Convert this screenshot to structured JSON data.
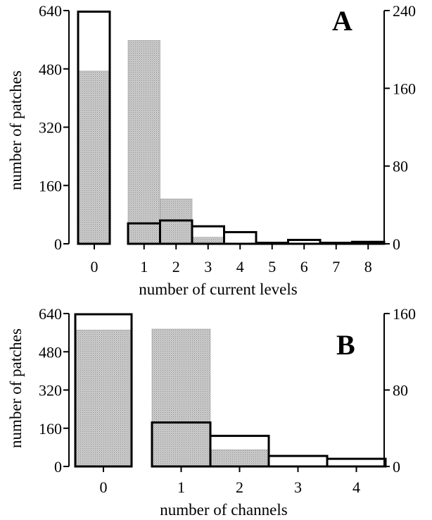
{
  "colors": {
    "gray_fill": "#c8c8c8",
    "open_fill": "#ffffff",
    "stroke": "#000000"
  },
  "chart_data": [
    {
      "panel": "A",
      "type": "bar",
      "ylabel": "number of patches",
      "xlabel": "number of current levels",
      "left_axis": {
        "range": [
          0,
          640
        ],
        "ticks": [
          "0",
          "160",
          "320",
          "480",
          "640"
        ]
      },
      "right_axis": {
        "range": [
          0,
          240
        ],
        "ticks": [
          "0",
          "80",
          "160",
          "240"
        ]
      },
      "categories": [
        "0",
        "1",
        "2",
        "3",
        "4",
        "5",
        "6",
        "7",
        "8"
      ],
      "series": [
        {
          "axis": "left",
          "style": "open",
          "values": [
            637,
            null,
            null,
            null,
            null,
            null,
            null,
            null,
            null
          ]
        },
        {
          "axis": "left",
          "style": "shaded",
          "values": [
            474,
            558,
            123,
            18,
            0,
            0,
            0,
            0,
            0
          ]
        },
        {
          "axis": "right",
          "style": "open",
          "values": [
            null,
            21,
            24,
            18,
            12,
            1,
            4,
            1,
            2
          ]
        }
      ]
    },
    {
      "panel": "B",
      "type": "bar",
      "ylabel": "number of patches",
      "xlabel": "number of channels",
      "left_axis": {
        "range": [
          0,
          640
        ],
        "ticks": [
          "0",
          "160",
          "320",
          "480",
          "640"
        ]
      },
      "right_axis": {
        "range": [
          0,
          160
        ],
        "ticks": [
          "0",
          "80",
          "160"
        ]
      },
      "categories": [
        "0",
        "1",
        "2",
        "3",
        "4"
      ],
      "series": [
        {
          "axis": "left",
          "style": "open",
          "values": [
            637,
            null,
            null,
            null,
            null
          ]
        },
        {
          "axis": "left",
          "style": "shaded",
          "values": [
            571,
            575,
            70,
            0,
            0
          ]
        },
        {
          "axis": "right",
          "style": "open",
          "values": [
            null,
            46,
            32,
            11,
            8
          ]
        }
      ]
    }
  ]
}
